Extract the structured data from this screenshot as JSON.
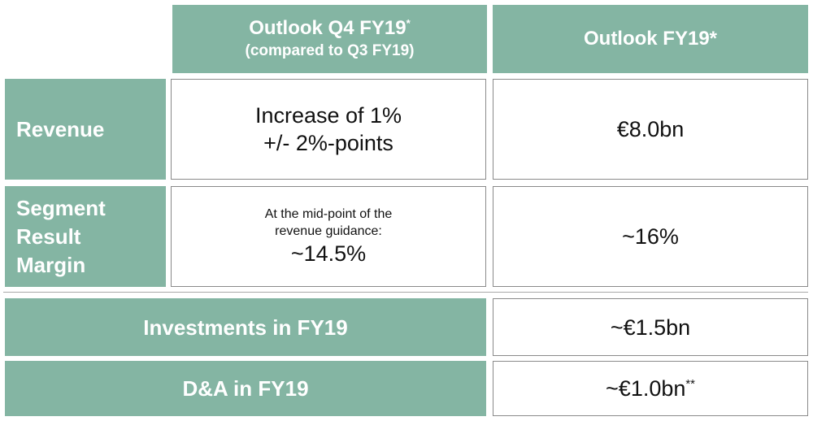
{
  "header": {
    "col1_title": "Outlook Q4 FY19",
    "col1_title_mark": "*",
    "col1_subtitle": "(compared to Q3 FY19)",
    "col2_title": "Outlook FY19*"
  },
  "rows": {
    "revenue": {
      "label": "Revenue",
      "q4_line1": "Increase of 1%",
      "q4_line2": "+/- 2%-points",
      "fy19": "€8.0bn"
    },
    "segment_margin": {
      "label_line1": "Segment",
      "label_line2": "Result",
      "label_line3": "Margin",
      "q4_note_line1": "At the mid-point of the",
      "q4_note_line2": "revenue guidance:",
      "q4_value": "~14.5%",
      "fy19": "~16%"
    },
    "investments": {
      "label": "Investments in FY19",
      "value": "~€1.5bn"
    },
    "da": {
      "label": "D&A in FY19",
      "value": "~€1.0bn",
      "value_mark": "**"
    }
  },
  "colors": {
    "accent_green": "#84b5a3",
    "border_gray": "#8a8a8a"
  }
}
